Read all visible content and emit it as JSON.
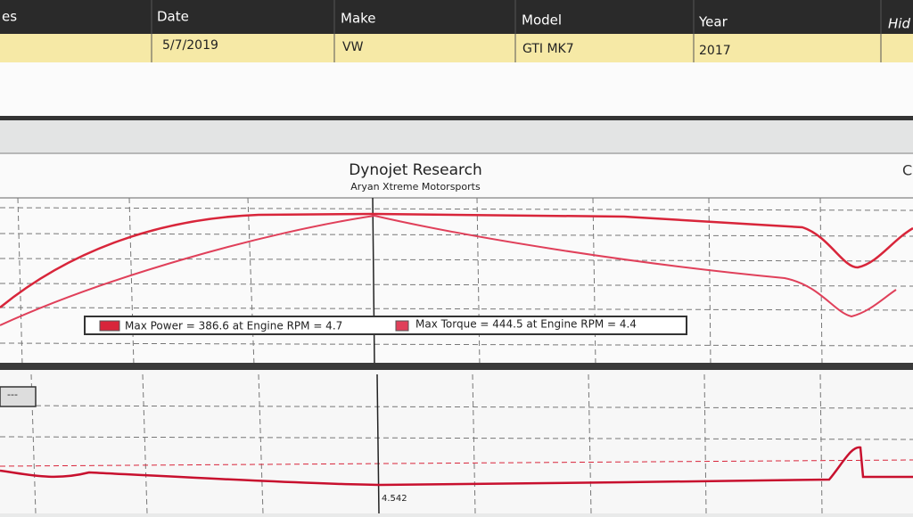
{
  "table": {
    "columns": [
      "es",
      "Date",
      "Make",
      "Model",
      "Year",
      "Hid"
    ],
    "rows": [
      [
        "5/7/2019",
        "VW",
        "GTI MK7",
        "2017"
      ]
    ]
  },
  "chart": {
    "title": "Dynojet Research",
    "subtitle": "Aryan Xtreme Motorsports",
    "corner_text": "C",
    "legend": [
      "Max Power = 386.6 at Engine RPM = 4.7",
      "Max Torque = 444.5 at Engine RPM = 4.4"
    ]
  },
  "lower": {
    "button": "---",
    "cursor_label": "4.542"
  }
}
